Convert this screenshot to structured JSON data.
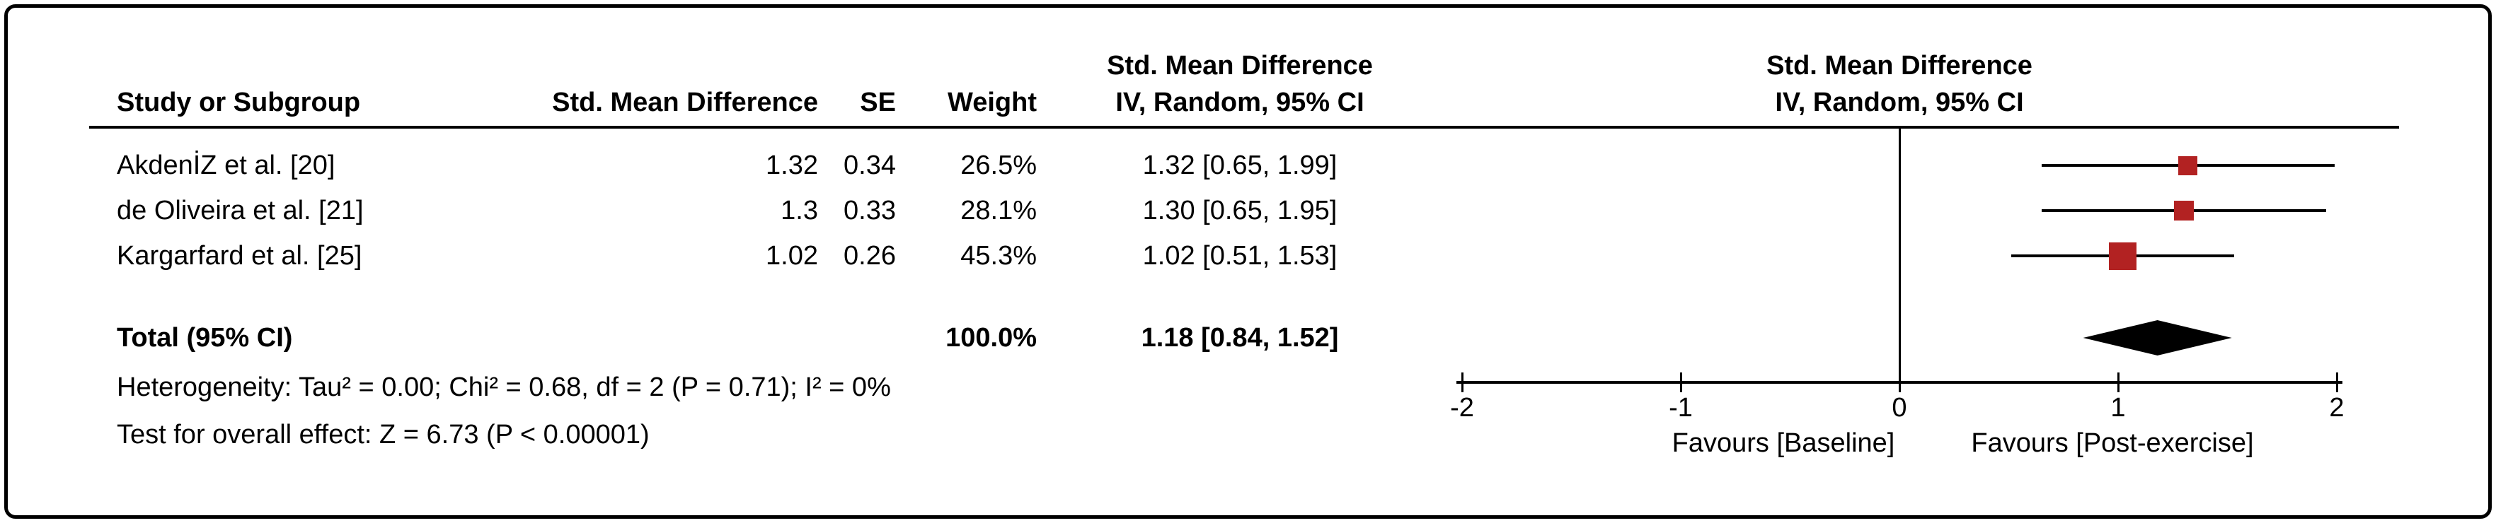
{
  "colors": {
    "marker": "#b22222",
    "diamond": "#000000",
    "line": "#000000"
  },
  "table": {
    "headers": {
      "study": "Study or Subgroup",
      "smd": "Std. Mean Difference",
      "se": "SE",
      "weight": "Weight",
      "ci_line1": "Std. Mean Difference",
      "ci_line2": "IV, Random, 95% CI",
      "plot_line1": "Std. Mean Difference",
      "plot_line2": "IV, Random, 95% CI"
    },
    "rows": [
      {
        "study": "AkdenİZ et al. [20]",
        "smd": "1.32",
        "se": "0.34",
        "weight": "26.5%",
        "ci": "1.32 [0.65, 1.99]"
      },
      {
        "study": "de Oliveira et al. [21]",
        "smd": "1.3",
        "se": "0.33",
        "weight": "28.1%",
        "ci": "1.30 [0.65, 1.95]"
      },
      {
        "study": "Kargarfard et al. [25]",
        "smd": "1.02",
        "se": "0.26",
        "weight": "45.3%",
        "ci": "1.02 [0.51, 1.53]"
      }
    ],
    "total": {
      "label": "Total (95% CI)",
      "weight": "100.0%",
      "ci": "1.18 [0.84, 1.52]"
    },
    "heterogeneity": "Heterogeneity: Tau² = 0.00; Chi² = 0.68, df = 2 (P = 0.71); I² = 0%",
    "overall_effect": "Test for overall effect: Z = 6.73 (P < 0.00001)"
  },
  "chart_data": {
    "type": "forest",
    "title": "",
    "effect_measure": "Std. Mean Difference",
    "model": "IV, Random, 95% CI",
    "studies": [
      {
        "name": "AkdenİZ et al. [20]",
        "smd": 1.32,
        "se": 0.34,
        "weight_pct": 26.5,
        "ci_low": 0.65,
        "ci_high": 1.99
      },
      {
        "name": "de Oliveira et al. [21]",
        "smd": 1.3,
        "se": 0.33,
        "weight_pct": 28.1,
        "ci_low": 0.65,
        "ci_high": 1.95
      },
      {
        "name": "Kargarfard et al. [25]",
        "smd": 1.02,
        "se": 0.26,
        "weight_pct": 45.3,
        "ci_low": 0.51,
        "ci_high": 1.53
      }
    ],
    "total": {
      "smd": 1.18,
      "ci_low": 0.84,
      "ci_high": 1.52,
      "weight_pct": 100.0
    },
    "heterogeneity": {
      "tau2": 0.0,
      "chi2": 0.68,
      "df": 2,
      "p": 0.71,
      "i2_pct": 0
    },
    "overall_effect": {
      "z": 6.73,
      "p": "< 0.00001"
    },
    "axis": {
      "min": -2,
      "max": 2,
      "ticks": [
        -2,
        -1,
        0,
        1,
        2
      ]
    },
    "x_left_label": "Favours [Baseline]",
    "x_right_label": "Favours [Post-exercise]"
  }
}
